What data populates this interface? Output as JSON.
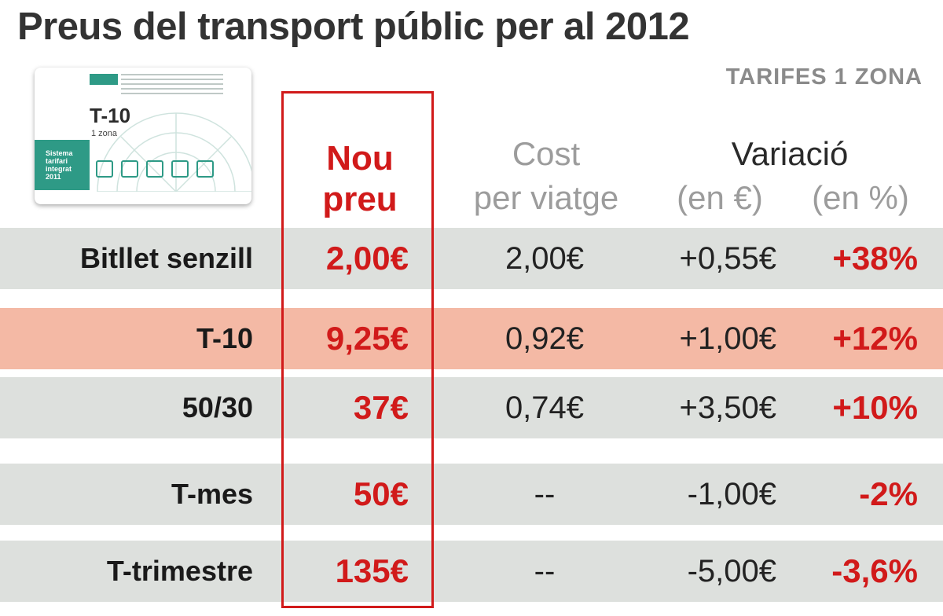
{
  "title": "Preus del transport públic per al 2012",
  "subtitle": "TARIFES 1 ZONA",
  "ticket": {
    "name": "T-10",
    "zone": "1 zona",
    "band_text": "Sistema\ntarifari\nintegrat\n2011"
  },
  "headers": {
    "new_price_1": "Nou",
    "new_price_2": "preu",
    "cost_1": "Cost",
    "cost_2": "per viatge",
    "variation": "Variació",
    "var_eur": "(en €)",
    "var_pct": "(en %)"
  },
  "colors": {
    "accent": "#d11a1a",
    "row_bg": "#dde0dd",
    "row_highlight": "#f4b9a5",
    "ticket_green": "#2e9a86"
  },
  "chart_data": {
    "type": "table",
    "title": "Preus del transport públic per al 2012",
    "subtitle": "TARIFES 1 ZONA",
    "columns": [
      "",
      "Nou preu",
      "Cost per viatge",
      "Variació (en €)",
      "Variació (en %)"
    ],
    "rows": [
      {
        "label": "Bitllet senzill",
        "new_price": "2,00€",
        "cost": "2,00€",
        "var_eur": "+0,55€",
        "var_pct": "+38%",
        "highlight": false
      },
      {
        "label": "T-10",
        "new_price": "9,25€",
        "cost": "0,92€",
        "var_eur": "+1,00€",
        "var_pct": "+12%",
        "highlight": true
      },
      {
        "label": "50/30",
        "new_price": "37€",
        "cost": "0,74€",
        "var_eur": "+3,50€",
        "var_pct": "+10%",
        "highlight": false
      },
      {
        "label": "T-mes",
        "new_price": "50€",
        "cost": "--",
        "var_eur": "-1,00€",
        "var_pct": "-2%",
        "highlight": false
      },
      {
        "label": "T-trimestre",
        "new_price": "135€",
        "cost": "--",
        "var_eur": "-5,00€",
        "var_pct": "-3,6%",
        "highlight": false
      }
    ]
  }
}
